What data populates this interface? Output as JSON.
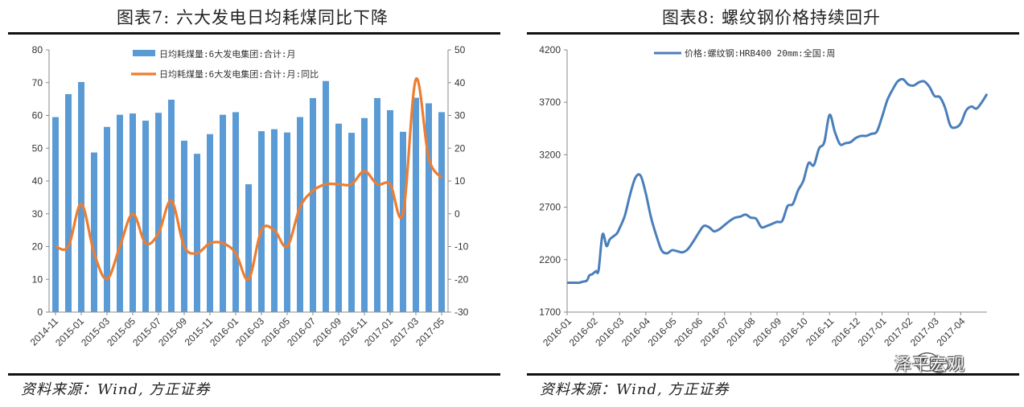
{
  "left_panel": {
    "title": "图表7:  六大发电日均耗煤同比下降",
    "source": "资料来源：Wind, 方正证券"
  },
  "right_panel": {
    "title": "图表8:  螺纹钢价格持续回升",
    "source": "资料来源：Wind, 方正证券"
  },
  "watermark": {
    "text": "泽平宏观",
    "icon": "wechat-icon"
  },
  "chart_data": [
    {
      "type": "bar",
      "categories": [
        "2014-11",
        "2014-12",
        "2015-01",
        "2015-02",
        "2015-03",
        "2015-04",
        "2015-05",
        "2015-06",
        "2015-07",
        "2015-08",
        "2015-09",
        "2015-10",
        "2015-11",
        "2015-12",
        "2016-01",
        "2016-02",
        "2016-03",
        "2016-04",
        "2016-05",
        "2016-06",
        "2016-07",
        "2016-08",
        "2016-09",
        "2016-10",
        "2016-11",
        "2016-12",
        "2017-01",
        "2017-02",
        "2017-03",
        "2017-04",
        "2017-05"
      ],
      "x_tick_labels": [
        "2014-11",
        "2015-01",
        "2015-03",
        "2015-05",
        "2015-07",
        "2015-09",
        "2015-11",
        "2016-01",
        "2016-03",
        "2016-05",
        "2016-07",
        "2016-09",
        "2016-11",
        "2017-01",
        "2017-03",
        "2017-05"
      ],
      "series": [
        {
          "name": "日均耗煤量:6大发电集团:合计:月",
          "axis": "left",
          "color": "#5b9bd5",
          "values": [
            59.5,
            66.5,
            70.2,
            48.7,
            56.5,
            60.2,
            60.6,
            58.4,
            60.8,
            64.8,
            52.3,
            48.3,
            54.3,
            60.2,
            61.0,
            39.0,
            55.2,
            55.8,
            54.8,
            59.5,
            65.3,
            70.5,
            57.5,
            54.7,
            59.2,
            65.3,
            61.6,
            55.0,
            65.4,
            63.7,
            61.0
          ]
        },
        {
          "name": "日均耗煤量:6大发电集团:合计:月:同比",
          "axis": "right",
          "type": "line",
          "color": "#ed7d31",
          "values": [
            -10,
            -10,
            3,
            -12,
            -20,
            -10,
            0,
            -9,
            -6,
            4,
            -10,
            -12,
            -9,
            -9,
            -12,
            -20,
            -5,
            -5,
            -10,
            2,
            7,
            9,
            9,
            9,
            13,
            9,
            9,
            0,
            41,
            17,
            11
          ]
        }
      ],
      "ylim_left": [
        0,
        80
      ],
      "yticks_left": [
        0,
        10,
        20,
        30,
        40,
        50,
        60,
        70,
        80
      ],
      "ylim_right": [
        -30,
        50
      ],
      "yticks_right": [
        -30,
        -20,
        -10,
        0,
        10,
        20,
        30,
        40,
        50
      ],
      "legend_position": "top-center"
    },
    {
      "type": "line",
      "x_tick_labels": [
        "2016-01",
        "2016-02",
        "2016-03",
        "2016-04",
        "2016-05",
        "2016-06",
        "2016-07",
        "2016-08",
        "2016-09",
        "2016-10",
        "2016-11",
        "2016-12",
        "2017-01",
        "2017-02",
        "2017-03",
        "2017-04"
      ],
      "series": [
        {
          "name": "价格:螺纹钢:HRB400 20mm:全国:周",
          "color": "#4a7ebb",
          "x": [
            0,
            0.15,
            0.3,
            0.45,
            0.6,
            0.75,
            0.85,
            0.95,
            1.0,
            1.1,
            1.2,
            1.35,
            1.5,
            1.6,
            1.65,
            1.75,
            1.9,
            2.0,
            2.2,
            2.4,
            2.6,
            2.8,
            3.0,
            3.2,
            3.4,
            3.6,
            3.8,
            4.0,
            4.2,
            4.4,
            4.6,
            4.8,
            5.0,
            5.2,
            5.4,
            5.6,
            5.8,
            6.0,
            6.2,
            6.4,
            6.6,
            6.8,
            7.0,
            7.2,
            7.4,
            7.6,
            7.8,
            8.0,
            8.2,
            8.4,
            8.6,
            8.8,
            9.0,
            9.2,
            9.4,
            9.6,
            9.8,
            10.0,
            10.2,
            10.4,
            10.6,
            10.8,
            11.0,
            11.2,
            11.4,
            11.6,
            11.8,
            12.0,
            12.2,
            12.4,
            12.6,
            12.8,
            13.0,
            13.2,
            13.4,
            13.6,
            13.8,
            14.0,
            14.2,
            14.4,
            14.6,
            14.8,
            15.0,
            15.2,
            15.4,
            15.6,
            15.8,
            16.0
          ],
          "values": [
            1980,
            1980,
            1980,
            1980,
            1990,
            2000,
            2050,
            2060,
            2070,
            2090,
            2100,
            2440,
            2330,
            2380,
            2400,
            2420,
            2450,
            2500,
            2620,
            2820,
            2980,
            3000,
            2830,
            2600,
            2430,
            2290,
            2260,
            2290,
            2280,
            2270,
            2300,
            2370,
            2450,
            2520,
            2510,
            2470,
            2490,
            2530,
            2570,
            2600,
            2610,
            2630,
            2600,
            2590,
            2510,
            2520,
            2540,
            2560,
            2570,
            2710,
            2730,
            2860,
            2950,
            3120,
            3100,
            3260,
            3320,
            3580,
            3420,
            3300,
            3310,
            3320,
            3360,
            3380,
            3380,
            3400,
            3420,
            3560,
            3720,
            3820,
            3900,
            3920,
            3870,
            3860,
            3890,
            3900,
            3850,
            3760,
            3750,
            3650,
            3480,
            3460,
            3500,
            3620,
            3660,
            3640,
            3700,
            3780
          ]
        }
      ],
      "ylim": [
        1700,
        4200
      ],
      "yticks": [
        1700,
        2200,
        2700,
        3200,
        3700,
        4200
      ],
      "legend_position": "top-center"
    }
  ]
}
